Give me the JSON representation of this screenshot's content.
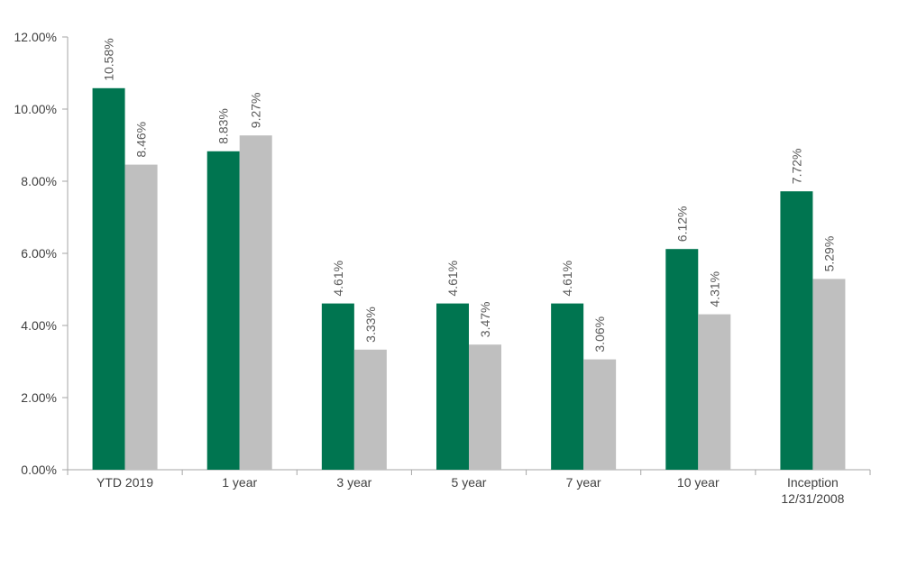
{
  "chart_data": {
    "type": "bar",
    "categories": [
      [
        "YTD 2019"
      ],
      [
        "1 year"
      ],
      [
        "3 year"
      ],
      [
        "5 year"
      ],
      [
        "7 year"
      ],
      [
        "10 year"
      ],
      [
        "Inception",
        "12/31/2008"
      ]
    ],
    "series": [
      {
        "color": "#007550",
        "values": [
          10.58,
          8.83,
          4.61,
          4.61,
          4.61,
          6.12,
          7.72
        ]
      },
      {
        "color": "#bfbfbf",
        "values": [
          8.46,
          9.27,
          3.33,
          3.47,
          3.06,
          4.31,
          5.29
        ]
      }
    ],
    "ylim": [
      0,
      12
    ],
    "yticks": [
      "0.00%",
      "2.00%",
      "4.00%",
      "6.00%",
      "8.00%",
      "10.00%",
      "12.00%"
    ],
    "ytick_values": [
      0,
      2,
      4,
      6,
      8,
      10,
      12
    ],
    "data_labels": [
      [
        "10.58%",
        "8.83%",
        "4.61%",
        "4.61%",
        "4.61%",
        "6.12%",
        "7.72%"
      ],
      [
        "8.46%",
        "9.27%",
        "3.33%",
        "3.47%",
        "3.06%",
        "4.31%",
        "5.29%"
      ]
    ],
    "grid": false,
    "legend": "none"
  }
}
